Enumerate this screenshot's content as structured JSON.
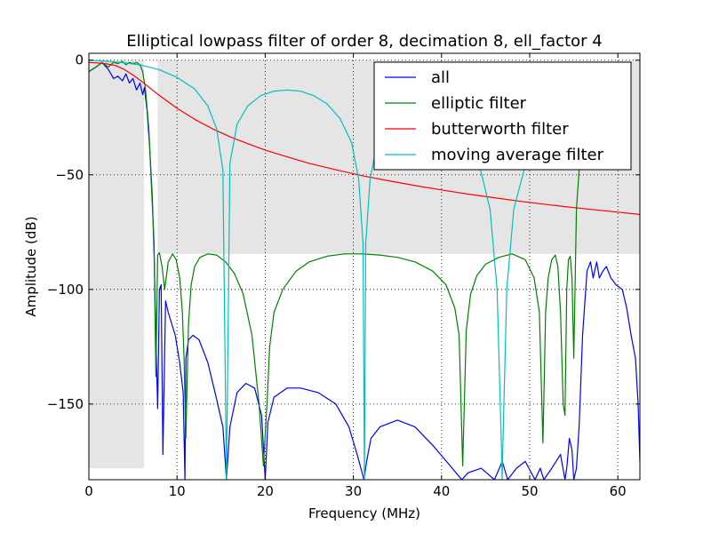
{
  "chart_data": {
    "type": "line",
    "title": "Elliptical lowpass filter of order 8, decimation 8, ell_factor 4",
    "xlabel": "Frequency (MHz)",
    "ylabel": "Amplitude (dB)",
    "xlim": [
      0,
      62.5
    ],
    "ylim": [
      -183,
      3
    ],
    "xticks": [
      0,
      10,
      20,
      30,
      40,
      50,
      60
    ],
    "yticks": [
      0,
      -50,
      -100,
      -150
    ],
    "xtick_labels": [
      "0",
      "10",
      "20",
      "30",
      "40",
      "50",
      "60"
    ],
    "ytick_labels": [
      "0",
      "−50",
      "−100",
      "−150"
    ],
    "grid": true,
    "legend_position": "top-right",
    "shaded_regions": [
      {
        "x": [
          0,
          6.25
        ],
        "y": [
          -178,
          0
        ],
        "color": "#e5e5e5"
      },
      {
        "x": [
          7.8,
          62.5
        ],
        "y": [
          -84.5,
          0
        ],
        "color": "#e5e5e5"
      }
    ],
    "series": [
      {
        "name": "all",
        "color": "#0000ff",
        "x": [
          0,
          0.8,
          1.5,
          2.2,
          2.8,
          3.3,
          3.8,
          4.2,
          4.6,
          5.0,
          5.4,
          5.8,
          6.1,
          6.3,
          6.6,
          6.9,
          7.2,
          7.4,
          7.6,
          7.8,
          8.0,
          8.2,
          8.4,
          8.7,
          9.0,
          9.4,
          9.8,
          10.3,
          10.7,
          10.9,
          11.0,
          11.3,
          11.8,
          12.5,
          13.5,
          14.5,
          15.2,
          15.6,
          16.0,
          16.8,
          17.8,
          18.8,
          19.6,
          20.0,
          20.3,
          21.0,
          22.5,
          24.0,
          26.0,
          28.0,
          29.5,
          30.5,
          31.2,
          31.5,
          32.0,
          33.0,
          35.0,
          37.0,
          39.0,
          41.0,
          42.3,
          43.0,
          44.5,
          46.0,
          46.9,
          47.5,
          48.5,
          49.5,
          50.6,
          51.2,
          51.6,
          52.5,
          53.5,
          54.0,
          54.2,
          54.5,
          54.8,
          55.0,
          55.3,
          55.6,
          56.0,
          56.5,
          56.9,
          57.2,
          57.6,
          57.9,
          58.3,
          58.7,
          59.2,
          59.8,
          60.5,
          61.0,
          61.5,
          62.0,
          62.3,
          62.5
        ],
        "values": [
          -5,
          -3,
          -1,
          -4,
          -8,
          -7,
          -9,
          -6,
          -10,
          -8,
          -13,
          -10,
          -15,
          -12,
          -22,
          -38,
          -60,
          -85,
          -120,
          -152,
          -100,
          -98,
          -172,
          -105,
          -110,
          -115,
          -120,
          -132,
          -145,
          -183,
          -130,
          -122,
          -120,
          -122,
          -132,
          -148,
          -160,
          -183,
          -160,
          -145,
          -141,
          -143,
          -155,
          -183,
          -158,
          -147,
          -143,
          -143,
          -145,
          -150,
          -160,
          -173,
          -183,
          -175,
          -165,
          -160,
          -157,
          -160,
          -168,
          -177,
          -183,
          -180,
          -178,
          -183,
          -175,
          -183,
          -178,
          -175,
          -183,
          -178,
          -183,
          -178,
          -172,
          -183,
          -178,
          -165,
          -170,
          -183,
          -178,
          -160,
          -120,
          -92,
          -88,
          -95,
          -88,
          -95,
          -92,
          -90,
          -95,
          -98,
          -100,
          -108,
          -120,
          -130,
          -150,
          -175
        ]
      },
      {
        "name": "elliptic filter",
        "color": "#008000",
        "x": [
          0,
          0.8,
          1.5,
          2.2,
          2.8,
          3.3,
          3.8,
          4.2,
          4.6,
          5.0,
          5.4,
          5.8,
          6.1,
          6.4,
          6.8,
          7.1,
          7.4,
          7.5,
          7.6,
          7.8,
          8.0,
          8.3,
          8.6,
          9.0,
          9.5,
          9.9,
          10.3,
          10.6,
          10.8,
          11.0,
          11.3,
          11.6,
          12.0,
          12.6,
          13.5,
          14.5,
          15.5,
          16.5,
          17.5,
          18.5,
          19.3,
          19.8,
          20.2,
          20.5,
          21.0,
          22.0,
          23.5,
          25.0,
          27.0,
          29.0,
          31.0,
          33.0,
          35.0,
          37.0,
          39.0,
          40.5,
          41.5,
          42.0,
          42.4,
          42.8,
          43.3,
          44.0,
          45.0,
          46.5,
          48.0,
          49.5,
          50.5,
          51.1,
          51.5,
          51.8,
          52.1,
          52.5,
          52.9,
          53.2,
          53.5,
          53.8,
          54.0,
          54.2,
          54.4,
          54.6,
          54.8,
          55.0,
          55.3,
          55.6,
          55.9
        ],
        "values": [
          -5,
          -3,
          -1,
          -3,
          -1,
          -1.5,
          -0.5,
          -2,
          -1,
          -1.5,
          -1,
          -2,
          -5,
          -12,
          -30,
          -55,
          -80,
          -110,
          -138,
          -85,
          -84,
          -90,
          -100,
          -88,
          -84.5,
          -87,
          -95,
          -110,
          -130,
          -165,
          -115,
          -98,
          -90,
          -86,
          -84.5,
          -85,
          -88,
          -93,
          -102,
          -120,
          -150,
          -177,
          -150,
          -125,
          -110,
          -100,
          -92,
          -88,
          -85.5,
          -84.5,
          -84.5,
          -85,
          -86,
          -88,
          -92,
          -98,
          -108,
          -120,
          -177,
          -118,
          -102,
          -94,
          -89,
          -86,
          -84.5,
          -87,
          -95,
          -110,
          -167,
          -110,
          -95,
          -87,
          -85,
          -90,
          -110,
          -150,
          -155,
          -100,
          -87,
          -85.5,
          -95,
          -130,
          -65,
          -48,
          -30
        ]
      },
      {
        "name": "butterworth filter",
        "color": "#ff0000",
        "x": [
          0,
          1,
          2,
          3,
          4,
          5,
          6,
          7,
          8,
          10,
          12,
          14,
          16,
          18,
          20,
          22,
          25,
          28,
          31,
          34,
          37,
          40,
          43,
          46,
          49,
          52,
          55,
          58,
          60,
          62.5
        ],
        "values": [
          -1,
          -1.2,
          -1.6,
          -2.3,
          -4,
          -6.5,
          -9.3,
          -12.4,
          -15.4,
          -21,
          -25.8,
          -29.9,
          -33.4,
          -36.4,
          -39.2,
          -41.6,
          -45,
          -47.8,
          -50.4,
          -52.6,
          -54.7,
          -56.6,
          -58.4,
          -60,
          -61.6,
          -63,
          -64.3,
          -65.5,
          -66.3,
          -67.3
        ]
      },
      {
        "name": "moving average filter",
        "color": "#00bfbf",
        "x": [
          0,
          2,
          4,
          6,
          8,
          10,
          12,
          13.5,
          14.5,
          15.2,
          15.6,
          16.0,
          16.8,
          18.0,
          19.5,
          21.0,
          22.5,
          24.0,
          25.5,
          27.0,
          28.5,
          29.8,
          30.6,
          31.1,
          31.25,
          31.4,
          31.9,
          32.7,
          34.0,
          35.5,
          37.0,
          38.5,
          40.0,
          41.5,
          43.0,
          44.3,
          45.5,
          46.3,
          46.8,
          46.875,
          46.95,
          47.4,
          48.2,
          49.5,
          51.0,
          52.5,
          53.5,
          54.0
        ],
        "values": [
          0,
          -0.5,
          -1.1,
          -2.2,
          -4.2,
          -7.5,
          -12.5,
          -20,
          -30,
          -48,
          -183,
          -45,
          -28,
          -20,
          -15.5,
          -13.5,
          -13,
          -13.5,
          -15.5,
          -19,
          -25.5,
          -36,
          -52,
          -80,
          -183,
          -80,
          -52,
          -36,
          -25.5,
          -21,
          -19.5,
          -19.5,
          -21,
          -25,
          -33,
          -46,
          -65,
          -100,
          -170,
          -183,
          -170,
          -100,
          -65,
          -46,
          -35,
          -30,
          -28,
          -28
        ]
      }
    ]
  }
}
